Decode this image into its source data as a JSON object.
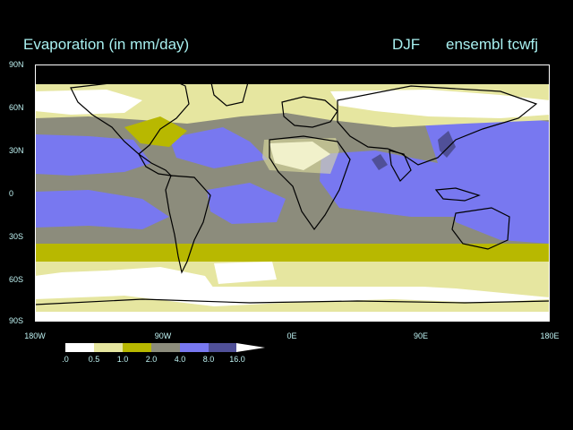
{
  "title": "Evaporation (in mm/day)",
  "season": "DJF",
  "model": "ensembl tcwfj",
  "lat_labels": [
    "90N",
    "60N",
    "30N",
    "0",
    "30S",
    "60S",
    "90S"
  ],
  "lon_labels": [
    "180W",
    "90W",
    "0E",
    "90E",
    "180E"
  ],
  "colorbar": {
    "levels": [
      ".0",
      "0.5",
      "1.0",
      "2.0",
      "4.0",
      "8.0",
      "16.0"
    ],
    "colors": [
      "#ffffff",
      "#e6e6a0",
      "#b8b800",
      "#8c8c7c",
      "#7878f0",
      "#505098"
    ]
  },
  "colors": {
    "background": "#000000",
    "land_mask": "#000000",
    "coastline": "#000000",
    "title_text": "#a8f0f0"
  }
}
